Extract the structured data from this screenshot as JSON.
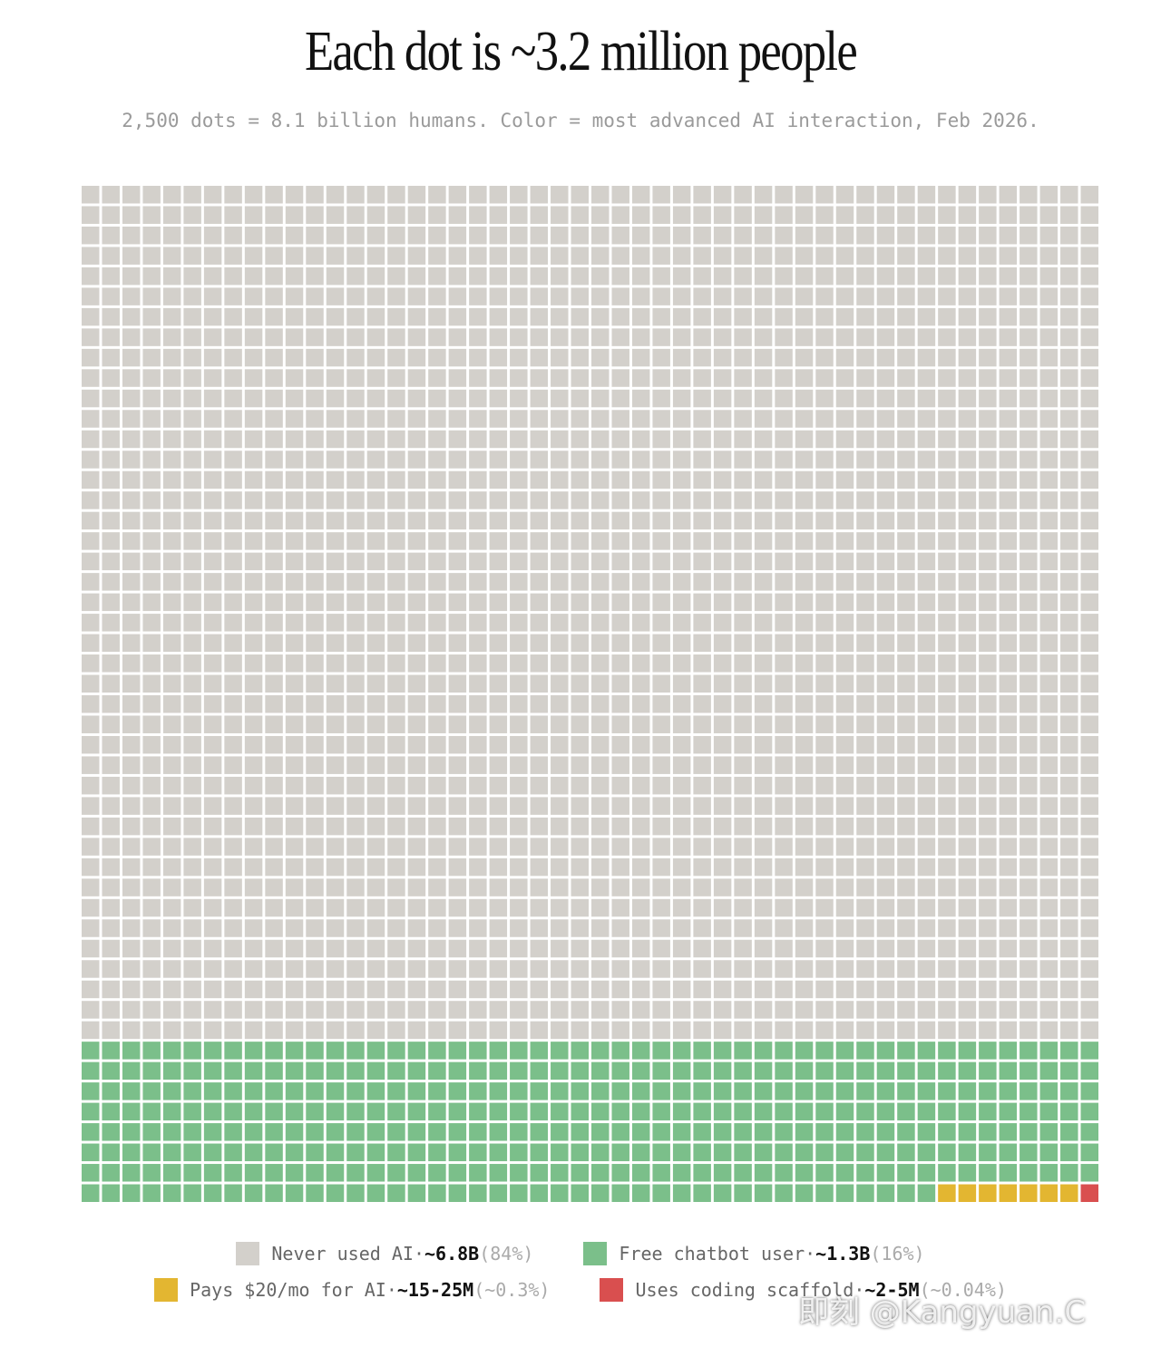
{
  "chart_data": {
    "type": "waffle",
    "title": "Each dot is ~3.2 million people",
    "subtitle": "2,500 dots = 8.1 billion humans. Color = most advanced AI interaction, Feb 2026.",
    "columns": 50,
    "legend_separator": "·",
    "series": [
      {
        "name": "Never used AI",
        "color": "#d3d0cb",
        "dots": 2100,
        "amount": "~6.8B",
        "share": "(84%)"
      },
      {
        "name": "Free chatbot user",
        "color": "#7bbf8a",
        "dots": 392,
        "amount": "~1.3B",
        "share": "(16%)"
      },
      {
        "name": "Pays $20/mo for AI",
        "color": "#e3b631",
        "dots": 7,
        "amount": "~15-25M",
        "share": "(~0.3%)"
      },
      {
        "name": "Uses coding scaffold",
        "color": "#d94f4f",
        "dots": 1,
        "amount": "~2-5M",
        "share": "(~0.04%)"
      }
    ]
  },
  "watermark": "即刻 @Kangyuan.C"
}
